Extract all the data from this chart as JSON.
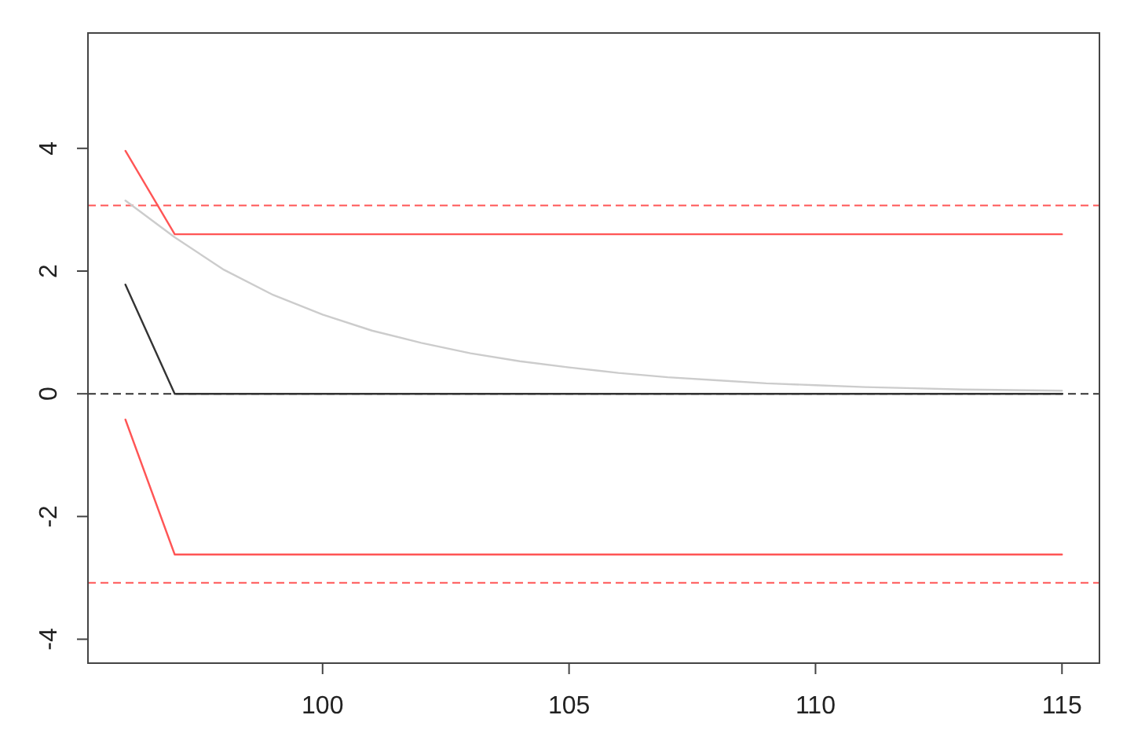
{
  "chart_data": {
    "type": "line",
    "xlim": [
      95.24,
      115.76
    ],
    "ylim": [
      -4.39,
      5.88
    ],
    "xticks": [
      100,
      105,
      110,
      115
    ],
    "yticks": [
      -4,
      -2,
      0,
      2,
      4
    ],
    "grid": false,
    "line_style": "solid",
    "marker": "none",
    "series": [
      {
        "color": "#ff5555",
        "x": [
          96,
          97,
          115
        ],
        "values": [
          3.96,
          2.6,
          2.6
        ]
      },
      {
        "color": "#ff5555",
        "x": [
          96,
          97,
          115
        ],
        "values": [
          -0.42,
          -2.62,
          -2.62
        ]
      },
      {
        "color": "#333333",
        "x": [
          96,
          97,
          115
        ],
        "values": [
          1.78,
          0,
          0
        ]
      },
      {
        "color": "#cccccc",
        "x": [
          96,
          97,
          98,
          99,
          100,
          101,
          102,
          103,
          104,
          105,
          106,
          107,
          108,
          109,
          110,
          111,
          112,
          113,
          114,
          115
        ],
        "values": [
          3.15,
          2.55,
          2.02,
          1.61,
          1.29,
          1.03,
          0.83,
          0.66,
          0.53,
          0.43,
          0.34,
          0.27,
          0.22,
          0.17,
          0.14,
          0.11,
          0.09,
          0.07,
          0.06,
          0.05
        ]
      }
    ],
    "ref_lines": [
      {
        "axis": "y",
        "value": 3.07,
        "color": "#ff5555",
        "line_style": "dashed"
      },
      {
        "axis": "y",
        "value": -3.08,
        "color": "#ff5555",
        "line_style": "dashed"
      },
      {
        "axis": "y",
        "value": 0,
        "color": "#333333",
        "line_style": "dashed"
      }
    ]
  }
}
